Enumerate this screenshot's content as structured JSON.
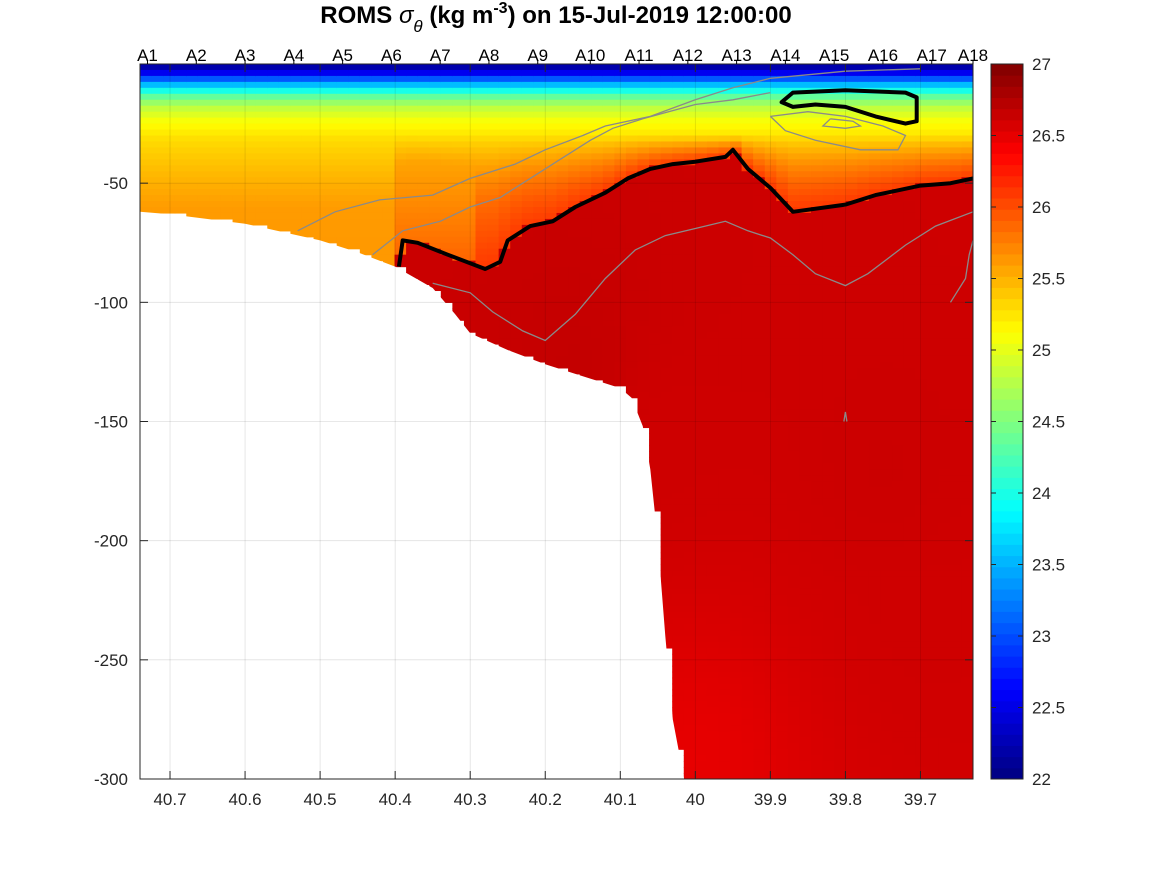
{
  "chart_data": {
    "type": "heatmap",
    "title": {
      "prefix": "ROMS ",
      "symbol": "σ",
      "subscript": "θ",
      "unit_open": " (kg m",
      "superscript": "-3",
      "suffix": ") on 15-Jul-2019 12:00:00"
    },
    "xlabel": "",
    "ylabel": "",
    "x_range": [
      40.74,
      39.63
    ],
    "x_reversed": true,
    "ylim": [
      -300,
      0
    ],
    "xticks": [
      40.7,
      40.6,
      40.5,
      40.4,
      40.3,
      40.2,
      40.1,
      40,
      39.9,
      39.8,
      39.7
    ],
    "xtick_labels": [
      "40.7",
      "40.6",
      "40.5",
      "40.4",
      "40.3",
      "40.2",
      "40.1",
      "40",
      "39.9",
      "39.8",
      "39.7"
    ],
    "yticks": [
      -50,
      -100,
      -150,
      -200,
      -250,
      -300
    ],
    "ytick_labels": [
      "-50",
      "-100",
      "-150",
      "-200",
      "-250",
      "-300"
    ],
    "grid": true,
    "colormap": "jet",
    "clim": [
      22,
      27
    ],
    "colorbar_ticks": [
      27,
      26.5,
      26,
      25.5,
      25,
      24.5,
      24,
      23.5,
      23,
      22.5,
      22
    ],
    "colorbar_labels": [
      "27",
      "26.5",
      "26",
      "25.5",
      "25",
      "24.5",
      "24",
      "23.5",
      "23",
      "22.5",
      "22"
    ],
    "stations": {
      "labels": [
        "A1",
        "A2",
        "A3",
        "A4",
        "A5",
        "A6",
        "A7",
        "A8",
        "A9",
        "A10",
        "A11",
        "A12",
        "A13",
        "A14",
        "A15",
        "A16",
        "A17",
        "A18"
      ],
      "positions": [
        40.73,
        40.665,
        40.6,
        40.535,
        40.47,
        40.405,
        40.34,
        40.275,
        40.21,
        40.14,
        40.075,
        40.01,
        39.945,
        39.88,
        39.815,
        39.75,
        39.685,
        39.63
      ]
    },
    "bathymetry": [
      [
        40.74,
        -62
      ],
      [
        40.7,
        -63
      ],
      [
        40.6,
        -67
      ],
      [
        40.5,
        -74
      ],
      [
        40.45,
        -79
      ],
      [
        40.4,
        -85
      ],
      [
        40.35,
        -94
      ],
      [
        40.32,
        -105
      ],
      [
        40.3,
        -113
      ],
      [
        40.25,
        -120
      ],
      [
        40.2,
        -126
      ],
      [
        40.15,
        -131
      ],
      [
        40.1,
        -136
      ],
      [
        40.085,
        -140
      ],
      [
        40.07,
        -152
      ],
      [
        40.06,
        -170
      ],
      [
        40.05,
        -200
      ],
      [
        40.04,
        -240
      ],
      [
        40.03,
        -275
      ],
      [
        40.015,
        -300
      ]
    ],
    "density_profile": [
      [
        0,
        22.1
      ],
      [
        -3,
        22.4
      ],
      [
        -6,
        23.0
      ],
      [
        -10,
        23.8
      ],
      [
        -14,
        24.4
      ],
      [
        -18,
        24.8
      ],
      [
        -24,
        25.1
      ],
      [
        -32,
        25.3
      ],
      [
        -45,
        25.45
      ],
      [
        -60,
        25.6
      ]
    ],
    "deep_values": [
      {
        "x": 40.05,
        "y": -150,
        "v": 26.7
      },
      {
        "x": 39.75,
        "y": -170,
        "v": 26.75
      },
      {
        "x": 39.7,
        "y": -240,
        "v": 26.7
      },
      {
        "x": 40.0,
        "y": -290,
        "v": 26.4
      },
      {
        "x": 40.15,
        "y": -130,
        "v": 26.85
      }
    ],
    "isopycnal_26_5": [
      [
        40.395,
        -85
      ],
      [
        40.39,
        -74
      ],
      [
        40.37,
        -75
      ],
      [
        40.33,
        -80
      ],
      [
        40.28,
        -86
      ],
      [
        40.26,
        -83
      ],
      [
        40.25,
        -74
      ],
      [
        40.22,
        -68
      ],
      [
        40.19,
        -66
      ],
      [
        40.16,
        -60
      ],
      [
        40.12,
        -54
      ],
      [
        40.09,
        -48
      ],
      [
        40.06,
        -44
      ],
      [
        40.03,
        -42
      ],
      [
        40.0,
        -41
      ],
      [
        39.96,
        -39
      ],
      [
        39.95,
        -36
      ],
      [
        39.93,
        -44
      ],
      [
        39.9,
        -52
      ],
      [
        39.87,
        -62
      ],
      [
        39.8,
        -59
      ],
      [
        39.76,
        -55
      ],
      [
        39.7,
        -51
      ],
      [
        39.66,
        -50
      ],
      [
        39.63,
        -48
      ]
    ],
    "isopycnal_eddy": [
      [
        39.885,
        -16
      ],
      [
        39.87,
        -12
      ],
      [
        39.8,
        -11
      ],
      [
        39.72,
        -12
      ],
      [
        39.705,
        -14
      ],
      [
        39.705,
        -24
      ],
      [
        39.72,
        -25
      ],
      [
        39.76,
        -22
      ],
      [
        39.8,
        -18
      ],
      [
        39.84,
        -17
      ],
      [
        39.87,
        -18
      ],
      [
        39.885,
        -16
      ]
    ],
    "grey_contours": [
      [
        [
          40.53,
          -70
        ],
        [
          40.48,
          -62
        ],
        [
          40.42,
          -57
        ],
        [
          40.35,
          -55
        ],
        [
          40.3,
          -48
        ],
        [
          40.24,
          -42
        ],
        [
          40.2,
          -36
        ],
        [
          40.15,
          -30
        ],
        [
          40.12,
          -26
        ],
        [
          40.06,
          -22
        ],
        [
          40.0,
          -15
        ],
        [
          39.95,
          -10
        ],
        [
          39.9,
          -6
        ],
        [
          39.8,
          -3
        ],
        [
          39.7,
          -2
        ]
      ],
      [
        [
          40.43,
          -80
        ],
        [
          40.39,
          -70
        ],
        [
          40.34,
          -66
        ],
        [
          40.3,
          -60
        ],
        [
          40.26,
          -56
        ],
        [
          40.22,
          -48
        ],
        [
          40.18,
          -40
        ],
        [
          40.14,
          -32
        ],
        [
          40.11,
          -27
        ],
        [
          40.07,
          -23
        ],
        [
          40.0,
          -17
        ],
        [
          39.95,
          -15
        ],
        [
          39.9,
          -12
        ]
      ],
      [
        [
          40.35,
          -92
        ],
        [
          40.3,
          -96
        ],
        [
          40.27,
          -104
        ],
        [
          40.23,
          -112
        ],
        [
          40.2,
          -116
        ],
        [
          40.16,
          -105
        ],
        [
          40.12,
          -90
        ],
        [
          40.08,
          -78
        ],
        [
          40.04,
          -72
        ],
        [
          40.0,
          -69
        ],
        [
          39.96,
          -66
        ],
        [
          39.93,
          -70
        ],
        [
          39.9,
          -73
        ],
        [
          39.87,
          -80
        ],
        [
          39.84,
          -88
        ],
        [
          39.8,
          -93
        ],
        [
          39.77,
          -88
        ],
        [
          39.72,
          -76
        ],
        [
          39.68,
          -68
        ],
        [
          39.63,
          -62
        ]
      ],
      [
        [
          39.66,
          -100
        ],
        [
          39.64,
          -90
        ],
        [
          39.635,
          -80
        ],
        [
          39.63,
          -74
        ]
      ],
      [
        [
          39.9,
          -22
        ],
        [
          39.85,
          -20
        ],
        [
          39.8,
          -22
        ],
        [
          39.75,
          -26
        ],
        [
          39.72,
          -30
        ],
        [
          39.73,
          -36
        ],
        [
          39.78,
          -36
        ],
        [
          39.84,
          -32
        ],
        [
          39.88,
          -28
        ],
        [
          39.9,
          -22
        ]
      ],
      [
        [
          39.82,
          -23
        ],
        [
          39.79,
          -24
        ],
        [
          39.78,
          -26
        ],
        [
          39.8,
          -27
        ],
        [
          39.83,
          -26
        ],
        [
          39.82,
          -23
        ]
      ],
      [
        [
          39.802,
          -150
        ],
        [
          39.8,
          -146
        ],
        [
          39.798,
          -150
        ]
      ]
    ]
  }
}
